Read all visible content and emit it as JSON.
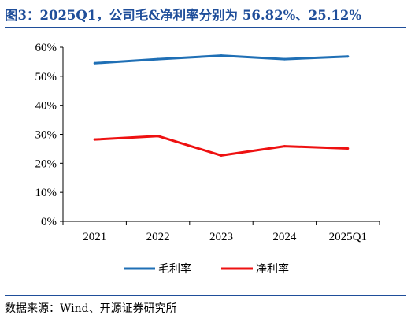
{
  "title": "图3：2025Q1，公司毛&净利率分别为 56.82%、25.12%",
  "source": "数据来源：Wind、开源证券研究所",
  "chart_data": {
    "type": "line",
    "categories": [
      "2021",
      "2022",
      "2023",
      "2024",
      "2025Q1"
    ],
    "series": [
      {
        "name": "毛利率",
        "values": [
          54.5,
          55.9,
          57.1,
          55.9,
          56.82
        ],
        "color": "#1f6fb5"
      },
      {
        "name": "净利率",
        "values": [
          28.2,
          29.4,
          22.7,
          25.9,
          25.12
        ],
        "color": "#ee1111"
      }
    ],
    "ylim": [
      0,
      60
    ],
    "yticks": [
      "0%",
      "10%",
      "20%",
      "30%",
      "40%",
      "50%",
      "60%"
    ],
    "grid": false,
    "legend": "bottom"
  }
}
